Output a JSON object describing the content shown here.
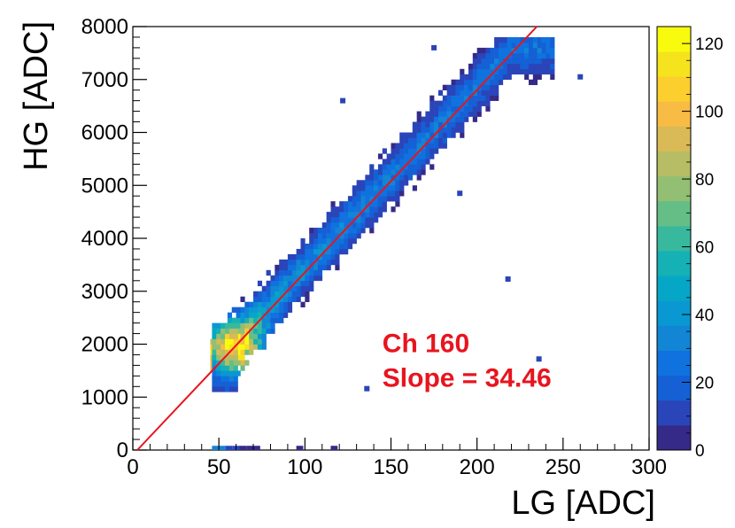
{
  "chart_data": {
    "type": "heatmap",
    "xlabel": "LG [ADC]",
    "ylabel": "HG [ADC]",
    "xlim": [
      0,
      300
    ],
    "ylim": [
      0,
      8000
    ],
    "x_ticks": [
      0,
      50,
      100,
      150,
      200,
      250,
      300
    ],
    "x_tick_labels": [
      "0",
      "50",
      "100",
      "150",
      "200",
      "250",
      "300"
    ],
    "y_ticks": [
      0,
      1000,
      2000,
      3000,
      4000,
      5000,
      6000,
      7000,
      8000
    ],
    "y_tick_labels": [
      "0",
      "1000",
      "2000",
      "3000",
      "4000",
      "5000",
      "6000",
      "7000",
      "8000"
    ],
    "colorbar": {
      "range": [
        0,
        125
      ],
      "ticks": [
        0,
        20,
        40,
        60,
        80,
        100,
        120
      ],
      "tick_labels": [
        "0",
        "20",
        "40",
        "60",
        "80",
        "100",
        "120"
      ],
      "palette": [
        "#352a87",
        "#2a45b9",
        "#1560d5",
        "#0f72df",
        "#1285d4",
        "#0998d1",
        "#06a7c6",
        "#15b1b4",
        "#38b99e",
        "#65be86",
        "#92bf73",
        "#b7bd64",
        "#d9ba56",
        "#f8bb44",
        "#fcce2e",
        "#f5e41d",
        "#f9fb0e"
      ]
    },
    "density_model": {
      "description": "Counts concentrated along HG ≈ slope × LG, peak near LG 50–70",
      "x_range": [
        45,
        245
      ],
      "y_band_halfwidth": 500,
      "peak_x": 57,
      "peak_y": 1900,
      "peak_value": 125
    },
    "outliers": [
      {
        "x": 218,
        "y": 3230
      },
      {
        "x": 236,
        "y": 1720
      },
      {
        "x": 136,
        "y": 1160
      },
      {
        "x": 260,
        "y": 7050
      },
      {
        "x": 122,
        "y": 6600
      },
      {
        "x": 190,
        "y": 4850
      },
      {
        "x": 175,
        "y": 7600
      }
    ],
    "baseline_entries": [
      {
        "x": 46,
        "y": 0,
        "value": 30
      },
      {
        "x": 50,
        "y": 0,
        "value": 35
      },
      {
        "x": 54,
        "y": 0,
        "value": 12
      },
      {
        "x": 58,
        "y": 0,
        "value": 8
      },
      {
        "x": 62,
        "y": 0,
        "value": 4
      },
      {
        "x": 66,
        "y": 0,
        "value": 2
      },
      {
        "x": 70,
        "y": 0,
        "value": 2
      },
      {
        "x": 95,
        "y": 0,
        "value": 2
      },
      {
        "x": 115,
        "y": 0,
        "value": 2
      }
    ],
    "fit_line": {
      "slope": 34.46,
      "intercept": -90,
      "color": "#e8141e"
    },
    "annotations": [
      {
        "text": "Ch 160",
        "x": 145,
        "y": 1850
      },
      {
        "text": "Slope = 34.46",
        "x": 145,
        "y": 1200
      }
    ]
  }
}
